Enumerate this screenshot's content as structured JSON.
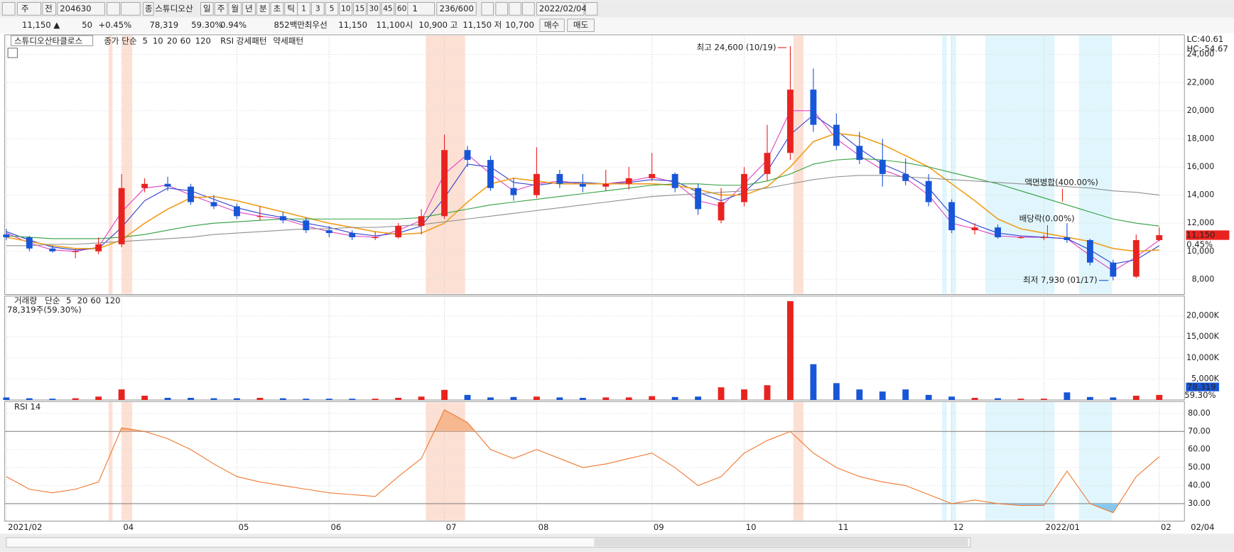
{
  "toolbar": {
    "market": "주",
    "prev": "전",
    "code": "204630",
    "badge": "종",
    "name": "스튜디오산",
    "periods": [
      "일",
      "주",
      "월",
      "년",
      "분",
      "초",
      "틱"
    ],
    "intervals": [
      "1",
      "3",
      "5",
      "10",
      "15",
      "30",
      "45",
      "60"
    ],
    "count": "1",
    "range": "236/600",
    "date": "2022/02/04"
  },
  "info": {
    "price": "11,150 ▲",
    "change": "50",
    "pct": "+0.45%",
    "volume": "78,319",
    "vol_ratio": "59.30%",
    "turnover": "0.94%",
    "amount": "852백만",
    "best_label": "최우선",
    "best_ask": "11,150",
    "best_bid": "11,100",
    "open_label": "시",
    "open": "10,900",
    "high_label": "고",
    "high": "11,150",
    "low_label": "저",
    "low": "10,700",
    "buy": "매수",
    "sell": "매도"
  },
  "chart_data": [
    {
      "type": "candlestick",
      "stock": "스튜디오산타클로스",
      "ma_label": "종가 단순",
      "patterns": [
        "RSI 강세패턴",
        "약세패턴"
      ],
      "lc": "LC:40.61",
      "hc": "HC:-54.67",
      "categories": [
        "2021/02",
        null,
        null,
        null,
        null,
        "04",
        null,
        null,
        null,
        null,
        "05",
        null,
        null,
        null,
        "06",
        null,
        null,
        null,
        null,
        "07",
        null,
        null,
        null,
        "08",
        null,
        null,
        null,
        null,
        "09",
        null,
        null,
        null,
        "10",
        null,
        null,
        null,
        "11",
        null,
        null,
        null,
        null,
        "12",
        null,
        null,
        null,
        "2022/01",
        null,
        null,
        null,
        null,
        "02"
      ],
      "date_label": "02/04",
      "open": [
        11200,
        11000,
        10200,
        10000,
        10000,
        10500,
        14500,
        14800,
        14600,
        13500,
        13200,
        12500,
        12500,
        12200,
        11500,
        11300,
        11000,
        11000,
        11800,
        12500,
        17200,
        16500,
        14500,
        14000,
        15500,
        14800,
        14600,
        14800,
        15200,
        15500,
        14500,
        12200,
        13500,
        15500,
        17000,
        21500,
        19000,
        17500,
        16500,
        15500,
        15000,
        13500,
        11500,
        11700,
        11000,
        11000,
        11000,
        10800,
        9200,
        8200,
        10800
      ],
      "high": [
        11600,
        11100,
        10400,
        10200,
        11000,
        15500,
        15200,
        15300,
        14800,
        14000,
        13400,
        13200,
        12800,
        12400,
        11800,
        11500,
        11400,
        12000,
        13000,
        18300,
        17500,
        16800,
        15200,
        17400,
        15800,
        15500,
        15800,
        16000,
        17000,
        15600,
        14800,
        14500,
        16000,
        19000,
        24600,
        23000,
        19800,
        18500,
        18000,
        16600,
        15500,
        13700,
        12000,
        11900,
        11100,
        11200,
        12000,
        10900,
        9400,
        11200,
        11700
      ],
      "low": [
        10800,
        10000,
        9900,
        9500,
        9800,
        10300,
        14200,
        14300,
        13300,
        13000,
        12300,
        12200,
        12000,
        11300,
        11000,
        10800,
        10800,
        10900,
        11200,
        12300,
        16000,
        14300,
        13600,
        13800,
        14500,
        14200,
        14300,
        14400,
        15000,
        14200,
        12600,
        12000,
        13200,
        15000,
        16500,
        18500,
        17200,
        16200,
        14600,
        14700,
        13200,
        11300,
        11200,
        10900,
        10900,
        10800,
        10600,
        9000,
        7930,
        8100,
        10700
      ],
      "close": [
        11000,
        10200,
        10000,
        10000,
        10500,
        14500,
        14800,
        14600,
        13500,
        13200,
        12500,
        12500,
        12200,
        11500,
        11300,
        11000,
        11000,
        11800,
        12500,
        17200,
        16500,
        14500,
        14000,
        15500,
        14800,
        14600,
        14800,
        15200,
        15500,
        14500,
        13000,
        13500,
        15500,
        17000,
        21500,
        19000,
        17500,
        16500,
        15500,
        15000,
        13500,
        11500,
        11700,
        11000,
        11000,
        11000,
        10800,
        9200,
        8200,
        10800,
        11150
      ],
      "up_color": "#e8231f",
      "down_color": "#1856d8",
      "series": [
        {
          "name": "5",
          "color": "#e040c0",
          "values": [
            11300,
            10600,
            10100,
            10000,
            10300,
            12800,
            14500,
            14700,
            14000,
            13400,
            12800,
            12500,
            12300,
            11800,
            11400,
            11100,
            11000,
            11500,
            12200,
            15500,
            16900,
            15500,
            14300,
            14800,
            15000,
            14800,
            14800,
            15000,
            15300,
            14900,
            13600,
            13200,
            14800,
            16500,
            20000,
            20000,
            18000,
            16800,
            15800,
            15200,
            14000,
            12000,
            11600,
            11100,
            11000,
            11000,
            10900,
            9700,
            8600,
            9600,
            10800
          ]
        },
        {
          "name": "10",
          "color": "#3040d0",
          "values": [
            11400,
            10800,
            10300,
            10100,
            10200,
            11700,
            13600,
            14500,
            14300,
            13700,
            13100,
            12700,
            12400,
            12000,
            11700,
            11300,
            11100,
            11300,
            11800,
            13800,
            16200,
            16000,
            14900,
            14700,
            14900,
            14900,
            14800,
            14900,
            15100,
            15000,
            14200,
            13600,
            14200,
            15700,
            18300,
            19700,
            18600,
            17300,
            16200,
            15500,
            14500,
            12600,
            11900,
            11300,
            11100,
            11000,
            10900,
            10100,
            9100,
            9400,
            10400
          ]
        },
        {
          "name": "20",
          "color": "#f0a020",
          "values": [
            11000,
            10700,
            10400,
            10200,
            10200,
            10800,
            12000,
            13000,
            13800,
            13900,
            13600,
            13200,
            12800,
            12400,
            12000,
            11700,
            11400,
            11200,
            11300,
            12000,
            13500,
            14800,
            15200,
            15000,
            14800,
            14800,
            14800,
            14800,
            14800,
            14700,
            14400,
            14000,
            14000,
            14600,
            16000,
            17800,
            18400,
            18200,
            17600,
            16800,
            16000,
            14800,
            13600,
            12300,
            11600,
            11300,
            11000,
            10700,
            10200,
            10000,
            10100
          ]
        },
        {
          "name": "60",
          "color": "#30a040",
          "values": [
            11100,
            11000,
            10900,
            10900,
            10900,
            11000,
            11200,
            11500,
            11800,
            12000,
            12100,
            12200,
            12300,
            12300,
            12300,
            12300,
            12300,
            12300,
            12400,
            12700,
            13000,
            13300,
            13500,
            13700,
            13900,
            14100,
            14300,
            14500,
            14700,
            14800,
            14800,
            14700,
            14700,
            15000,
            15500,
            16200,
            16500,
            16600,
            16500,
            16300,
            16000,
            15600,
            15200,
            14800,
            14300,
            13800,
            13300,
            12800,
            12300,
            12000,
            11800
          ]
        },
        {
          "name": "120",
          "color": "#909090",
          "values": [
            10400,
            10400,
            10500,
            10500,
            10600,
            10700,
            10800,
            10900,
            11000,
            11200,
            11300,
            11400,
            11500,
            11600,
            11600,
            11700,
            11700,
            11800,
            11900,
            12100,
            12300,
            12500,
            12700,
            12900,
            13100,
            13300,
            13500,
            13700,
            13900,
            14000,
            14100,
            14200,
            14300,
            14500,
            14800,
            15100,
            15300,
            15400,
            15400,
            15300,
            15200,
            15100,
            15000,
            14900,
            14800,
            14700,
            14600,
            14500,
            14300,
            14200,
            14000
          ]
        }
      ],
      "ylim": [
        6930,
        25400
      ],
      "yticks": [
        {
          "value": 8000,
          "label": "8,000"
        },
        {
          "value": 10000,
          "label": "10,000"
        },
        {
          "value": 12000,
          "label": "12,000"
        },
        {
          "value": 14000,
          "label": "14,000"
        },
        {
          "value": 16000,
          "label": "16,000"
        },
        {
          "value": 18000,
          "label": "18,000"
        },
        {
          "value": 20000,
          "label": "20,000"
        },
        {
          "value": 22000,
          "label": "22,000"
        },
        {
          "value": 24000,
          "label": "24,000"
        }
      ],
      "grid": true,
      "annotations": {
        "high": "최고 24,600 (10/19)",
        "low": "최저 7,930 (01/17)",
        "split": "액면병합(400.00%)",
        "dividend": "배당락(0.00%)"
      },
      "last_price": {
        "value": 11150,
        "label": "11,150"
      },
      "last_change": "0.45%"
    },
    {
      "type": "bar",
      "name": "거래량",
      "ma_label": "단순",
      "ma_periods": [
        "5",
        "20",
        "60",
        "120"
      ],
      "summary": "78,319주(59.30%)",
      "values": [
        600,
        400,
        300,
        400,
        800,
        2500,
        1000,
        500,
        500,
        400,
        400,
        500,
        400,
        300,
        300,
        300,
        300,
        500,
        800,
        2400,
        1200,
        600,
        700,
        800,
        600,
        500,
        600,
        600,
        900,
        700,
        800,
        3000,
        2500,
        3500,
        23500,
        8500,
        4000,
        2500,
        2000,
        2500,
        1200,
        800,
        500,
        400,
        300,
        300,
        1800,
        700,
        600,
        1000,
        1200
      ],
      "ylim": [
        0,
        24700
      ],
      "yticks": [
        {
          "value": 5000,
          "label": "5,000K"
        },
        {
          "value": 10000,
          "label": "10,000K"
        },
        {
          "value": 15000,
          "label": "15,000K"
        },
        {
          "value": 20000,
          "label": "20,000K"
        }
      ],
      "last_volume": "78,319",
      "last_ratio": "59.30%"
    },
    {
      "type": "line",
      "name": "RSI 14",
      "color": "#f07830",
      "values": [
        45,
        38,
        36,
        38,
        42,
        72,
        70,
        66,
        60,
        52,
        45,
        42,
        40,
        38,
        36,
        35,
        34,
        45,
        55,
        82,
        75,
        60,
        55,
        60,
        55,
        50,
        52,
        55,
        58,
        50,
        40,
        45,
        58,
        65,
        70,
        58,
        50,
        45,
        42,
        40,
        35,
        30,
        32,
        30,
        29,
        29,
        48,
        30,
        25,
        45,
        56
      ],
      "ylim": [
        20.3,
        86.6
      ],
      "yticks": [
        {
          "value": 30,
          "label": "30.00"
        },
        {
          "value": 40,
          "label": "40.00"
        },
        {
          "value": 50,
          "label": "50.00"
        },
        {
          "value": 60,
          "label": "60.00"
        },
        {
          "value": 70,
          "label": "70.00"
        },
        {
          "value": 80,
          "label": "80.00"
        }
      ],
      "bounds": [
        30,
        70
      ]
    }
  ]
}
